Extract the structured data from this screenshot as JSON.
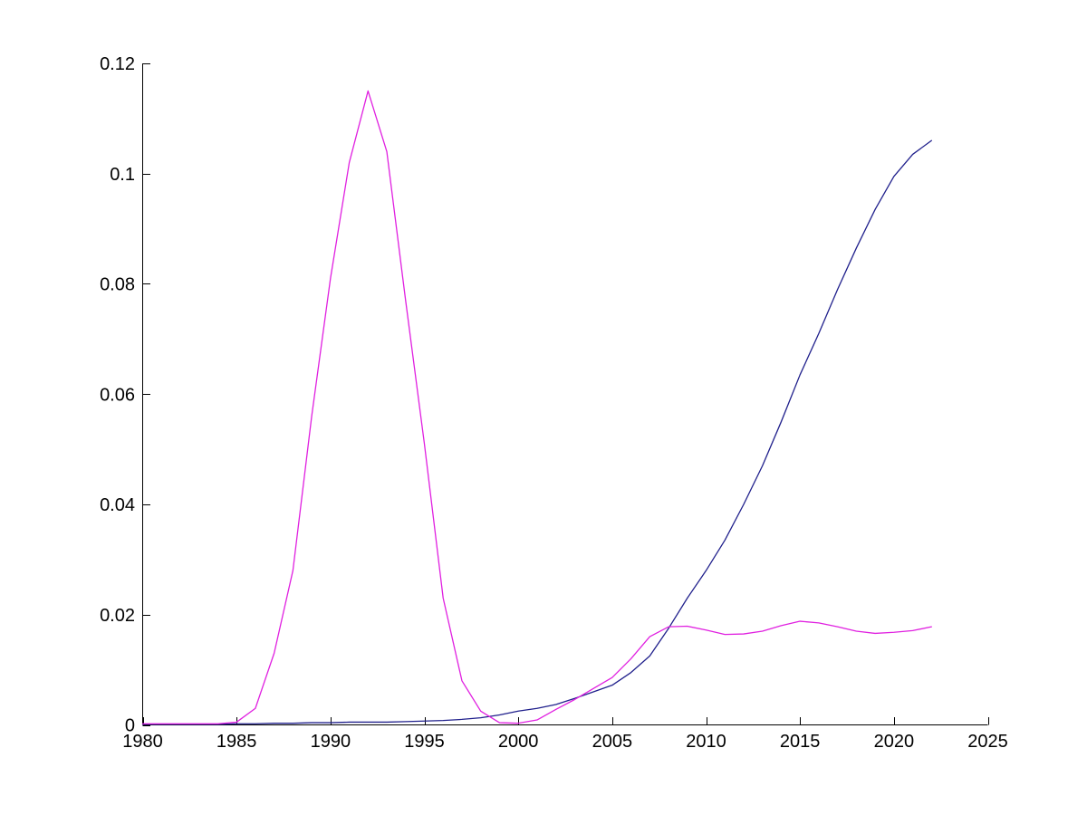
{
  "figure": {
    "background": "#ffffff",
    "title": ""
  },
  "chart_data": {
    "type": "line",
    "title": "",
    "subtitle": "",
    "xlabel": "",
    "ylabel": "",
    "grid": false,
    "legend_position": "none",
    "box": false,
    "axis_color": "#000000",
    "xlim": [
      1980,
      2025
    ],
    "ylim": [
      0,
      0.12
    ],
    "x_ticks": [
      1980,
      1985,
      1990,
      1995,
      2000,
      2005,
      2010,
      2015,
      2020,
      2025
    ],
    "x_tick_labels": [
      "1980",
      "1985",
      "1990",
      "1995",
      "2000",
      "2005",
      "2010",
      "2015",
      "2020",
      "2025"
    ],
    "y_ticks": [
      0,
      0.02,
      0.04,
      0.06,
      0.08,
      0.1,
      0.12
    ],
    "y_tick_labels": [
      "0",
      "0.02",
      "0.04",
      "0.06",
      "0.08",
      "0.1",
      "0.12"
    ],
    "x": [
      1980,
      1981,
      1982,
      1983,
      1984,
      1985,
      1986,
      1987,
      1988,
      1989,
      1990,
      1991,
      1992,
      1993,
      1994,
      1995,
      1996,
      1997,
      1998,
      1999,
      2000,
      2001,
      2002,
      2003,
      2004,
      2005,
      2006,
      2007,
      2008,
      2009,
      2010,
      2011,
      2012,
      2013,
      2014,
      2015,
      2016,
      2017,
      2018,
      2019,
      2020,
      2021,
      2022
    ],
    "series": [
      {
        "name": "dark-blue-line",
        "color": "#20208c",
        "values": [
          0.0001,
          0.0001,
          0.0001,
          0.0001,
          0.0001,
          0.0002,
          0.0002,
          0.0003,
          0.0003,
          0.0004,
          0.0004,
          0.0005,
          0.0005,
          0.0005,
          0.0006,
          0.0007,
          0.0008,
          0.001,
          0.0013,
          0.0018,
          0.0025,
          0.003,
          0.0037,
          0.0048,
          0.006,
          0.0072,
          0.0095,
          0.0125,
          0.0175,
          0.023,
          0.028,
          0.0335,
          0.04,
          0.047,
          0.055,
          0.0635,
          0.071,
          0.079,
          0.0865,
          0.0935,
          0.0995,
          0.1035,
          0.106
        ]
      },
      {
        "name": "magenta-line",
        "color": "#e020e0",
        "values": [
          0.0002,
          0.0002,
          0.0002,
          0.0002,
          0.0002,
          0.0005,
          0.003,
          0.013,
          0.028,
          0.056,
          0.081,
          0.102,
          0.115,
          0.104,
          0.077,
          0.051,
          0.023,
          0.008,
          0.0025,
          0.0004,
          0.0003,
          0.0009,
          0.0028,
          0.0046,
          0.0066,
          0.0086,
          0.012,
          0.016,
          0.0178,
          0.0179,
          0.0172,
          0.0164,
          0.0165,
          0.017,
          0.018,
          0.0188,
          0.0185,
          0.0178,
          0.017,
          0.0166,
          0.0168,
          0.0171,
          0.0178
        ]
      }
    ]
  }
}
